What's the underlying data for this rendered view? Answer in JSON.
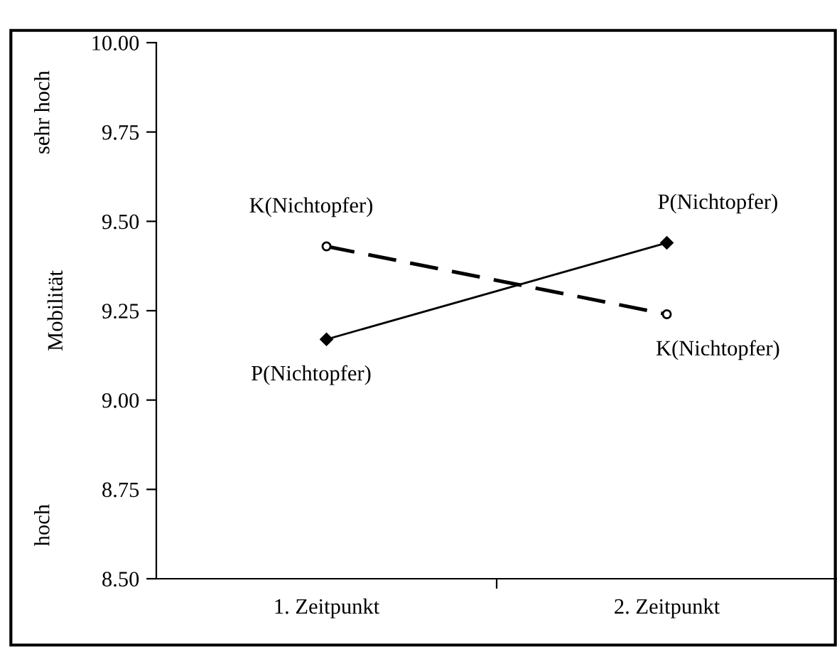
{
  "chart_data": {
    "type": "line",
    "ylabel": "Mobilität",
    "categories": [
      "1. Zeitpunkt",
      "2. Zeitpunkt"
    ],
    "series": [
      {
        "name": "P(Nichtopfer)",
        "color": "#000000",
        "values": [
          9.17,
          9.44
        ],
        "marker": "diamond",
        "line_style": "solid"
      },
      {
        "name": "K(Nichtopfer)",
        "color": "#000000",
        "values": [
          9.43,
          9.24
        ],
        "marker": "circle",
        "line_style": "dashed"
      }
    ],
    "ylim": [
      8.5,
      10.0
    ],
    "yticks": [
      {
        "value": 8.5,
        "label": "8.50"
      },
      {
        "value": 8.75,
        "label": "8.75"
      },
      {
        "value": 9.0,
        "label": "9.00"
      },
      {
        "value": 9.25,
        "label": "9.25"
      },
      {
        "value": 9.5,
        "label": "9.50"
      },
      {
        "value": 9.75,
        "label": "9.75"
      },
      {
        "value": 10.0,
        "label": "10.00"
      }
    ],
    "annotations": [
      "sehr hoch",
      "hoch"
    ],
    "grid": false,
    "legend": false
  }
}
